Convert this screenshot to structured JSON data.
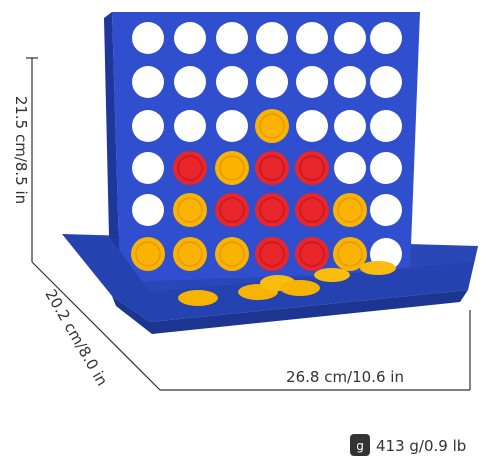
{
  "dimensions": {
    "height": "21.5 cm/8.5 in",
    "depth": "20.2 cm/8.0 in",
    "width": "26.8 cm/10.6 in"
  },
  "weight": {
    "icon": "g",
    "label": "413 g/0.9 lb"
  }
}
